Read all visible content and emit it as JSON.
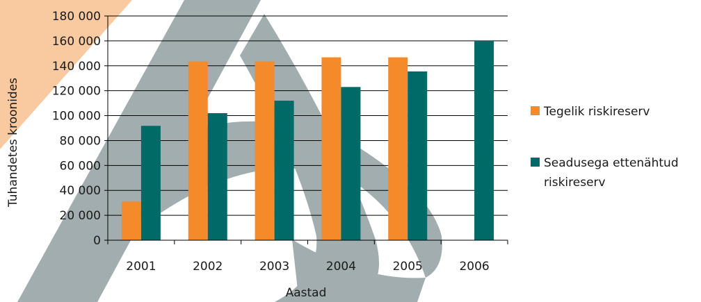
{
  "chart_data": {
    "type": "bar",
    "title": "",
    "xlabel": "Aastad",
    "ylabel": "Tuhandetes kroonides",
    "categories": [
      "2001",
      "2002",
      "2003",
      "2004",
      "2005",
      "2006"
    ],
    "ylim": [
      0,
      180000
    ],
    "yticks": [
      0,
      20000,
      40000,
      60000,
      80000,
      100000,
      120000,
      140000,
      160000,
      180000
    ],
    "ytick_labels": [
      "0",
      "20 000",
      "40 000",
      "60 000",
      "80 000",
      "100 000",
      "120 000",
      "140 000",
      "160 000",
      "180 000"
    ],
    "grid": true,
    "legend_position": "right",
    "series": [
      {
        "name": "Tegelik riskireserv",
        "color": "#f58a2b",
        "values": [
          31000,
          143500,
          143500,
          146800,
          146800,
          null
        ]
      },
      {
        "name_line1": "Seadusega ettenähtud",
        "name_line2": "riskireserv",
        "color": "#006b66",
        "values": [
          91800,
          102000,
          112000,
          123000,
          135500,
          160000
        ]
      }
    ]
  }
}
